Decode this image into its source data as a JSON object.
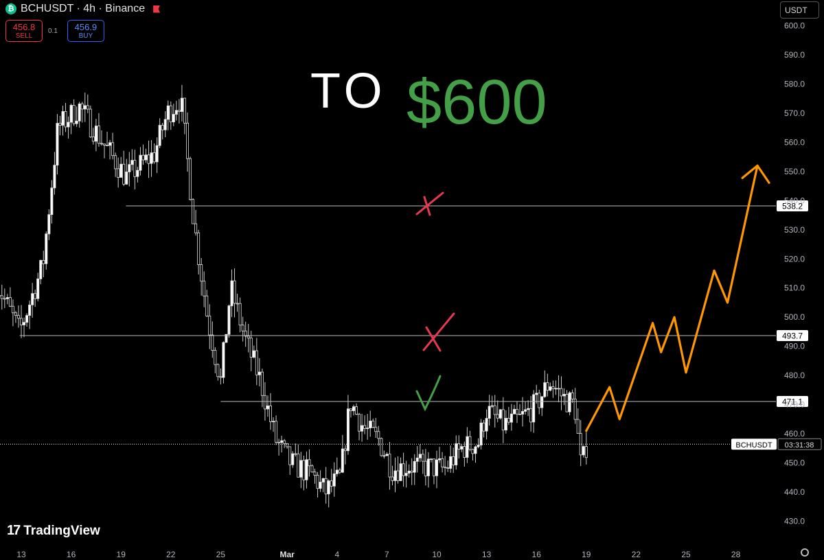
{
  "header": {
    "symbol_title": "BCHUSDT · 4h · Binance",
    "coin_icon": "bitcoin-cash-icon"
  },
  "trade": {
    "sell_price": "456.8",
    "sell_label": "SELL",
    "spread": "0.1",
    "buy_price": "456.9",
    "buy_label": "BUY"
  },
  "currency": "USDT",
  "watermark": "TradingView",
  "annotations": {
    "headline_to": "TO",
    "headline_target": "$600"
  },
  "chart_data": {
    "type": "candlestick",
    "title": "",
    "ylim": [
      427,
      603
    ],
    "y_ticks": [
      430,
      440,
      450,
      460,
      470,
      480,
      490,
      500,
      510,
      520,
      530,
      540,
      550,
      560,
      570,
      580,
      590,
      600
    ],
    "x_ticks": [
      {
        "label": "13",
        "day": 13
      },
      {
        "label": "16",
        "day": 16
      },
      {
        "label": "19",
        "day": 19
      },
      {
        "label": "22",
        "day": 22
      },
      {
        "label": "25",
        "day": 25
      },
      {
        "label": "Mar",
        "day": 29
      },
      {
        "label": "4",
        "day": 32
      },
      {
        "label": "7",
        "day": 35
      },
      {
        "label": "10",
        "day": 38
      },
      {
        "label": "13",
        "day": 41
      },
      {
        "label": "16",
        "day": 44
      },
      {
        "label": "19",
        "day": 47
      },
      {
        "label": "22",
        "day": 50
      },
      {
        "label": "25",
        "day": 53
      },
      {
        "label": "28",
        "day": 56
      }
    ],
    "levels": [
      {
        "value": 538.2,
        "label": "538.2",
        "from_day": 19.3,
        "status": "rejected"
      },
      {
        "value": 493.7,
        "label": "493.7",
        "from_day": 12.9,
        "status": "rejected"
      },
      {
        "value": 471.1,
        "label": "471.1",
        "from_day": 25.0,
        "status": "held"
      }
    ],
    "last_price": {
      "value": 456.9,
      "symbol": "BCHUSDT",
      "countdown": "03:31:38"
    },
    "trend_anchors": [
      {
        "day": 11.5,
        "price": 512
      },
      {
        "day": 12.9,
        "price": 495
      },
      {
        "day": 14.3,
        "price": 518
      },
      {
        "day": 15.2,
        "price": 565
      },
      {
        "day": 16.5,
        "price": 572
      },
      {
        "day": 19.3,
        "price": 548
      },
      {
        "day": 21.0,
        "price": 556
      },
      {
        "day": 21.8,
        "price": 570
      },
      {
        "day": 22.6,
        "price": 575
      },
      {
        "day": 23.4,
        "price": 532
      },
      {
        "day": 24.2,
        "price": 500
      },
      {
        "day": 25.0,
        "price": 478
      },
      {
        "day": 25.6,
        "price": 510
      },
      {
        "day": 26.5,
        "price": 492
      },
      {
        "day": 27.4,
        "price": 478
      },
      {
        "day": 28.3,
        "price": 458
      },
      {
        "day": 29.2,
        "price": 450
      },
      {
        "day": 30.5,
        "price": 446
      },
      {
        "day": 31.3,
        "price": 440
      },
      {
        "day": 32.2,
        "price": 445
      },
      {
        "day": 32.8,
        "price": 471
      },
      {
        "day": 33.6,
        "price": 462
      },
      {
        "day": 34.5,
        "price": 458
      },
      {
        "day": 35.3,
        "price": 448
      },
      {
        "day": 36.5,
        "price": 449
      },
      {
        "day": 38.5,
        "price": 448
      },
      {
        "day": 39.5,
        "price": 455
      },
      {
        "day": 40.5,
        "price": 457
      },
      {
        "day": 41.0,
        "price": 468
      },
      {
        "day": 42.0,
        "price": 463
      },
      {
        "day": 43.0,
        "price": 465
      },
      {
        "day": 44.0,
        "price": 470
      },
      {
        "day": 44.8,
        "price": 478
      },
      {
        "day": 45.7,
        "price": 472
      },
      {
        "day": 46.3,
        "price": 470
      },
      {
        "day": 46.7,
        "price": 448
      },
      {
        "day": 47.0,
        "price": 456
      }
    ],
    "projection_path": [
      {
        "day": 47.0,
        "price": 461
      },
      {
        "day": 48.4,
        "price": 476
      },
      {
        "day": 49.0,
        "price": 465
      },
      {
        "day": 51.0,
        "price": 498
      },
      {
        "day": 51.5,
        "price": 488
      },
      {
        "day": 52.3,
        "price": 500
      },
      {
        "day": 53.0,
        "price": 481
      },
      {
        "day": 54.7,
        "price": 516
      },
      {
        "day": 55.5,
        "price": 505
      },
      {
        "day": 57.3,
        "price": 552
      }
    ],
    "grid": false
  }
}
